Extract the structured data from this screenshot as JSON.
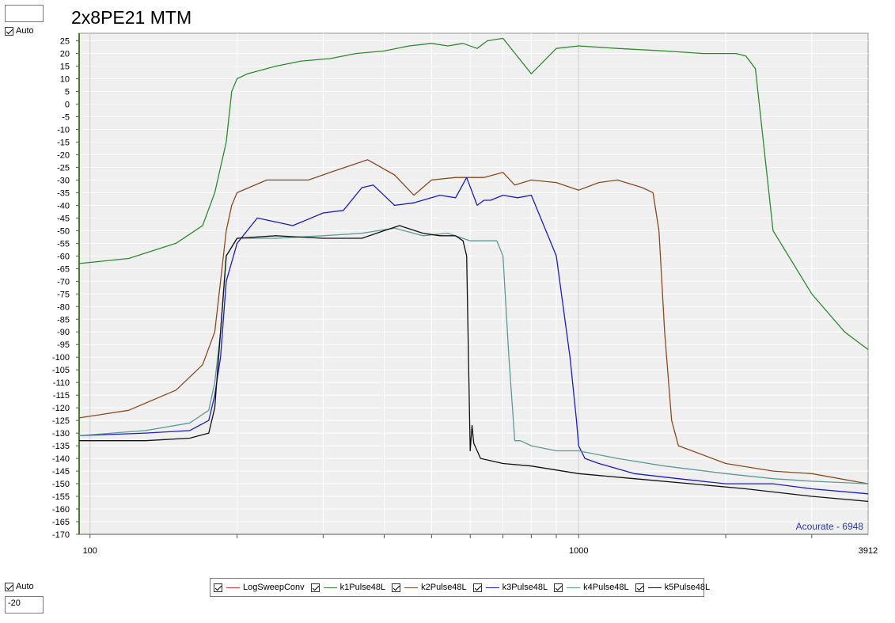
{
  "title": "2x8PE21 MTM",
  "controls": {
    "y_max_value": "",
    "y_auto_top_label": "Auto",
    "y_auto_bottom_label": "Auto",
    "y_min_value": "-20"
  },
  "watermark": "Acourate - 6948",
  "colors": {
    "plot_bg": "#efefef",
    "grid": "#ffffff",
    "axis_left": "#4d7a2e",
    "watermark": "#2b3aa8"
  },
  "chart_data": {
    "type": "line",
    "title": "2x8PE21 MTM",
    "xlabel": "",
    "ylabel": "",
    "x_scale": "log",
    "xlim": [
      95,
      3912
    ],
    "ylim": [
      -170,
      28
    ],
    "x_tick_labels": [
      "100",
      "1000",
      "3912"
    ],
    "y_ticks": [
      25,
      20,
      15,
      10,
      5,
      0,
      -5,
      -10,
      -15,
      -20,
      -25,
      -30,
      -35,
      -40,
      -45,
      -50,
      -55,
      -60,
      -65,
      -70,
      -75,
      -80,
      -85,
      -90,
      -95,
      -100,
      -105,
      -110,
      -115,
      -120,
      -125,
      -130,
      -135,
      -140,
      -145,
      -150,
      -155,
      -160,
      -165,
      -170
    ],
    "grid": true,
    "legend_position": "bottom",
    "series": [
      {
        "name": "LogSweepConv",
        "color": "#e0323c",
        "checked": true,
        "x": [],
        "y": []
      },
      {
        "name": "k1Pulse48L",
        "color": "#2e8b2e",
        "checked": true,
        "x": [
          95,
          120,
          150,
          170,
          180,
          190,
          195,
          200,
          210,
          240,
          270,
          310,
          350,
          400,
          450,
          500,
          540,
          580,
          620,
          650,
          700,
          800,
          900,
          1000,
          1200,
          1500,
          1800,
          2100,
          2200,
          2300,
          2500,
          3000,
          3500,
          3912
        ],
        "y": [
          -63,
          -61,
          -55,
          -48,
          -35,
          -15,
          5,
          10,
          12,
          15,
          17,
          18,
          20,
          21,
          23,
          24,
          23,
          24,
          22,
          25,
          26,
          12,
          22,
          23,
          22,
          21,
          20,
          20,
          19,
          14,
          -50,
          -75,
          -90,
          -97
        ]
      },
      {
        "name": "k2Pulse48L",
        "color": "#8b4a1e",
        "checked": true,
        "x": [
          95,
          120,
          150,
          170,
          180,
          185,
          190,
          195,
          200,
          230,
          280,
          310,
          370,
          420,
          460,
          500,
          560,
          640,
          700,
          740,
          800,
          900,
          1000,
          1100,
          1200,
          1350,
          1420,
          1460,
          1500,
          1550,
          1600,
          2000,
          2500,
          3000,
          3912
        ],
        "y": [
          -124,
          -121,
          -113,
          -103,
          -90,
          -70,
          -50,
          -40,
          -35,
          -30,
          -30,
          -27,
          -22,
          -28,
          -36,
          -30,
          -29,
          -29,
          -27,
          -32,
          -30,
          -31,
          -34,
          -31,
          -30,
          -33,
          -35,
          -50,
          -90,
          -125,
          -135,
          -142,
          -145,
          -146,
          -150
        ]
      },
      {
        "name": "k3Pulse48L",
        "color": "#1c1cc2",
        "checked": true,
        "x": [
          95,
          130,
          160,
          175,
          180,
          185,
          190,
          200,
          220,
          260,
          300,
          330,
          360,
          380,
          420,
          460,
          520,
          560,
          590,
          620,
          640,
          660,
          700,
          750,
          800,
          900,
          960,
          990,
          1000,
          1030,
          1100,
          1300,
          1600,
          2000,
          2500,
          3000,
          3912
        ],
        "y": [
          -131,
          -130,
          -129,
          -125,
          -115,
          -100,
          -70,
          -55,
          -45,
          -48,
          -43,
          -42,
          -33,
          -32,
          -40,
          -39,
          -36,
          -37,
          -29,
          -40,
          -38,
          -38,
          -36,
          -37,
          -36,
          -60,
          -100,
          -125,
          -135,
          -140,
          -142,
          -146,
          -148,
          -150,
          -150,
          -152,
          -154
        ]
      },
      {
        "name": "k4Pulse48L",
        "color": "#5e9a94",
        "checked": true,
        "x": [
          95,
          130,
          160,
          175,
          180,
          185,
          190,
          200,
          240,
          300,
          360,
          420,
          480,
          540,
          600,
          640,
          680,
          700,
          720,
          740,
          760,
          780,
          800,
          900,
          1000,
          1200,
          1500,
          2000,
          2500,
          3000,
          3912
        ],
        "y": [
          -131,
          -129,
          -126,
          -121,
          -110,
          -90,
          -60,
          -53,
          -53,
          -52,
          -51,
          -49,
          -52,
          -51,
          -54,
          -54,
          -54,
          -60,
          -100,
          -133,
          -133,
          -134,
          -135,
          -137,
          -137,
          -140,
          -143,
          -146,
          -148,
          -149,
          -150
        ]
      },
      {
        "name": "k5Pulse48L",
        "color": "#111111",
        "checked": true,
        "x": [
          95,
          130,
          160,
          175,
          180,
          185,
          190,
          200,
          240,
          300,
          360,
          400,
          430,
          480,
          520,
          560,
          580,
          590,
          595,
          600,
          605,
          610,
          630,
          700,
          800,
          1000,
          1300,
          1700,
          2200,
          3000,
          3912
        ],
        "y": [
          -133,
          -133,
          -132,
          -130,
          -120,
          -90,
          -60,
          -53,
          -52,
          -53,
          -53,
          -50,
          -48,
          -51,
          -52,
          -52,
          -54,
          -60,
          -100,
          -137,
          -127,
          -134,
          -140,
          -142,
          -143,
          -146,
          -148,
          -150,
          -152,
          -155,
          -157
        ]
      }
    ]
  }
}
